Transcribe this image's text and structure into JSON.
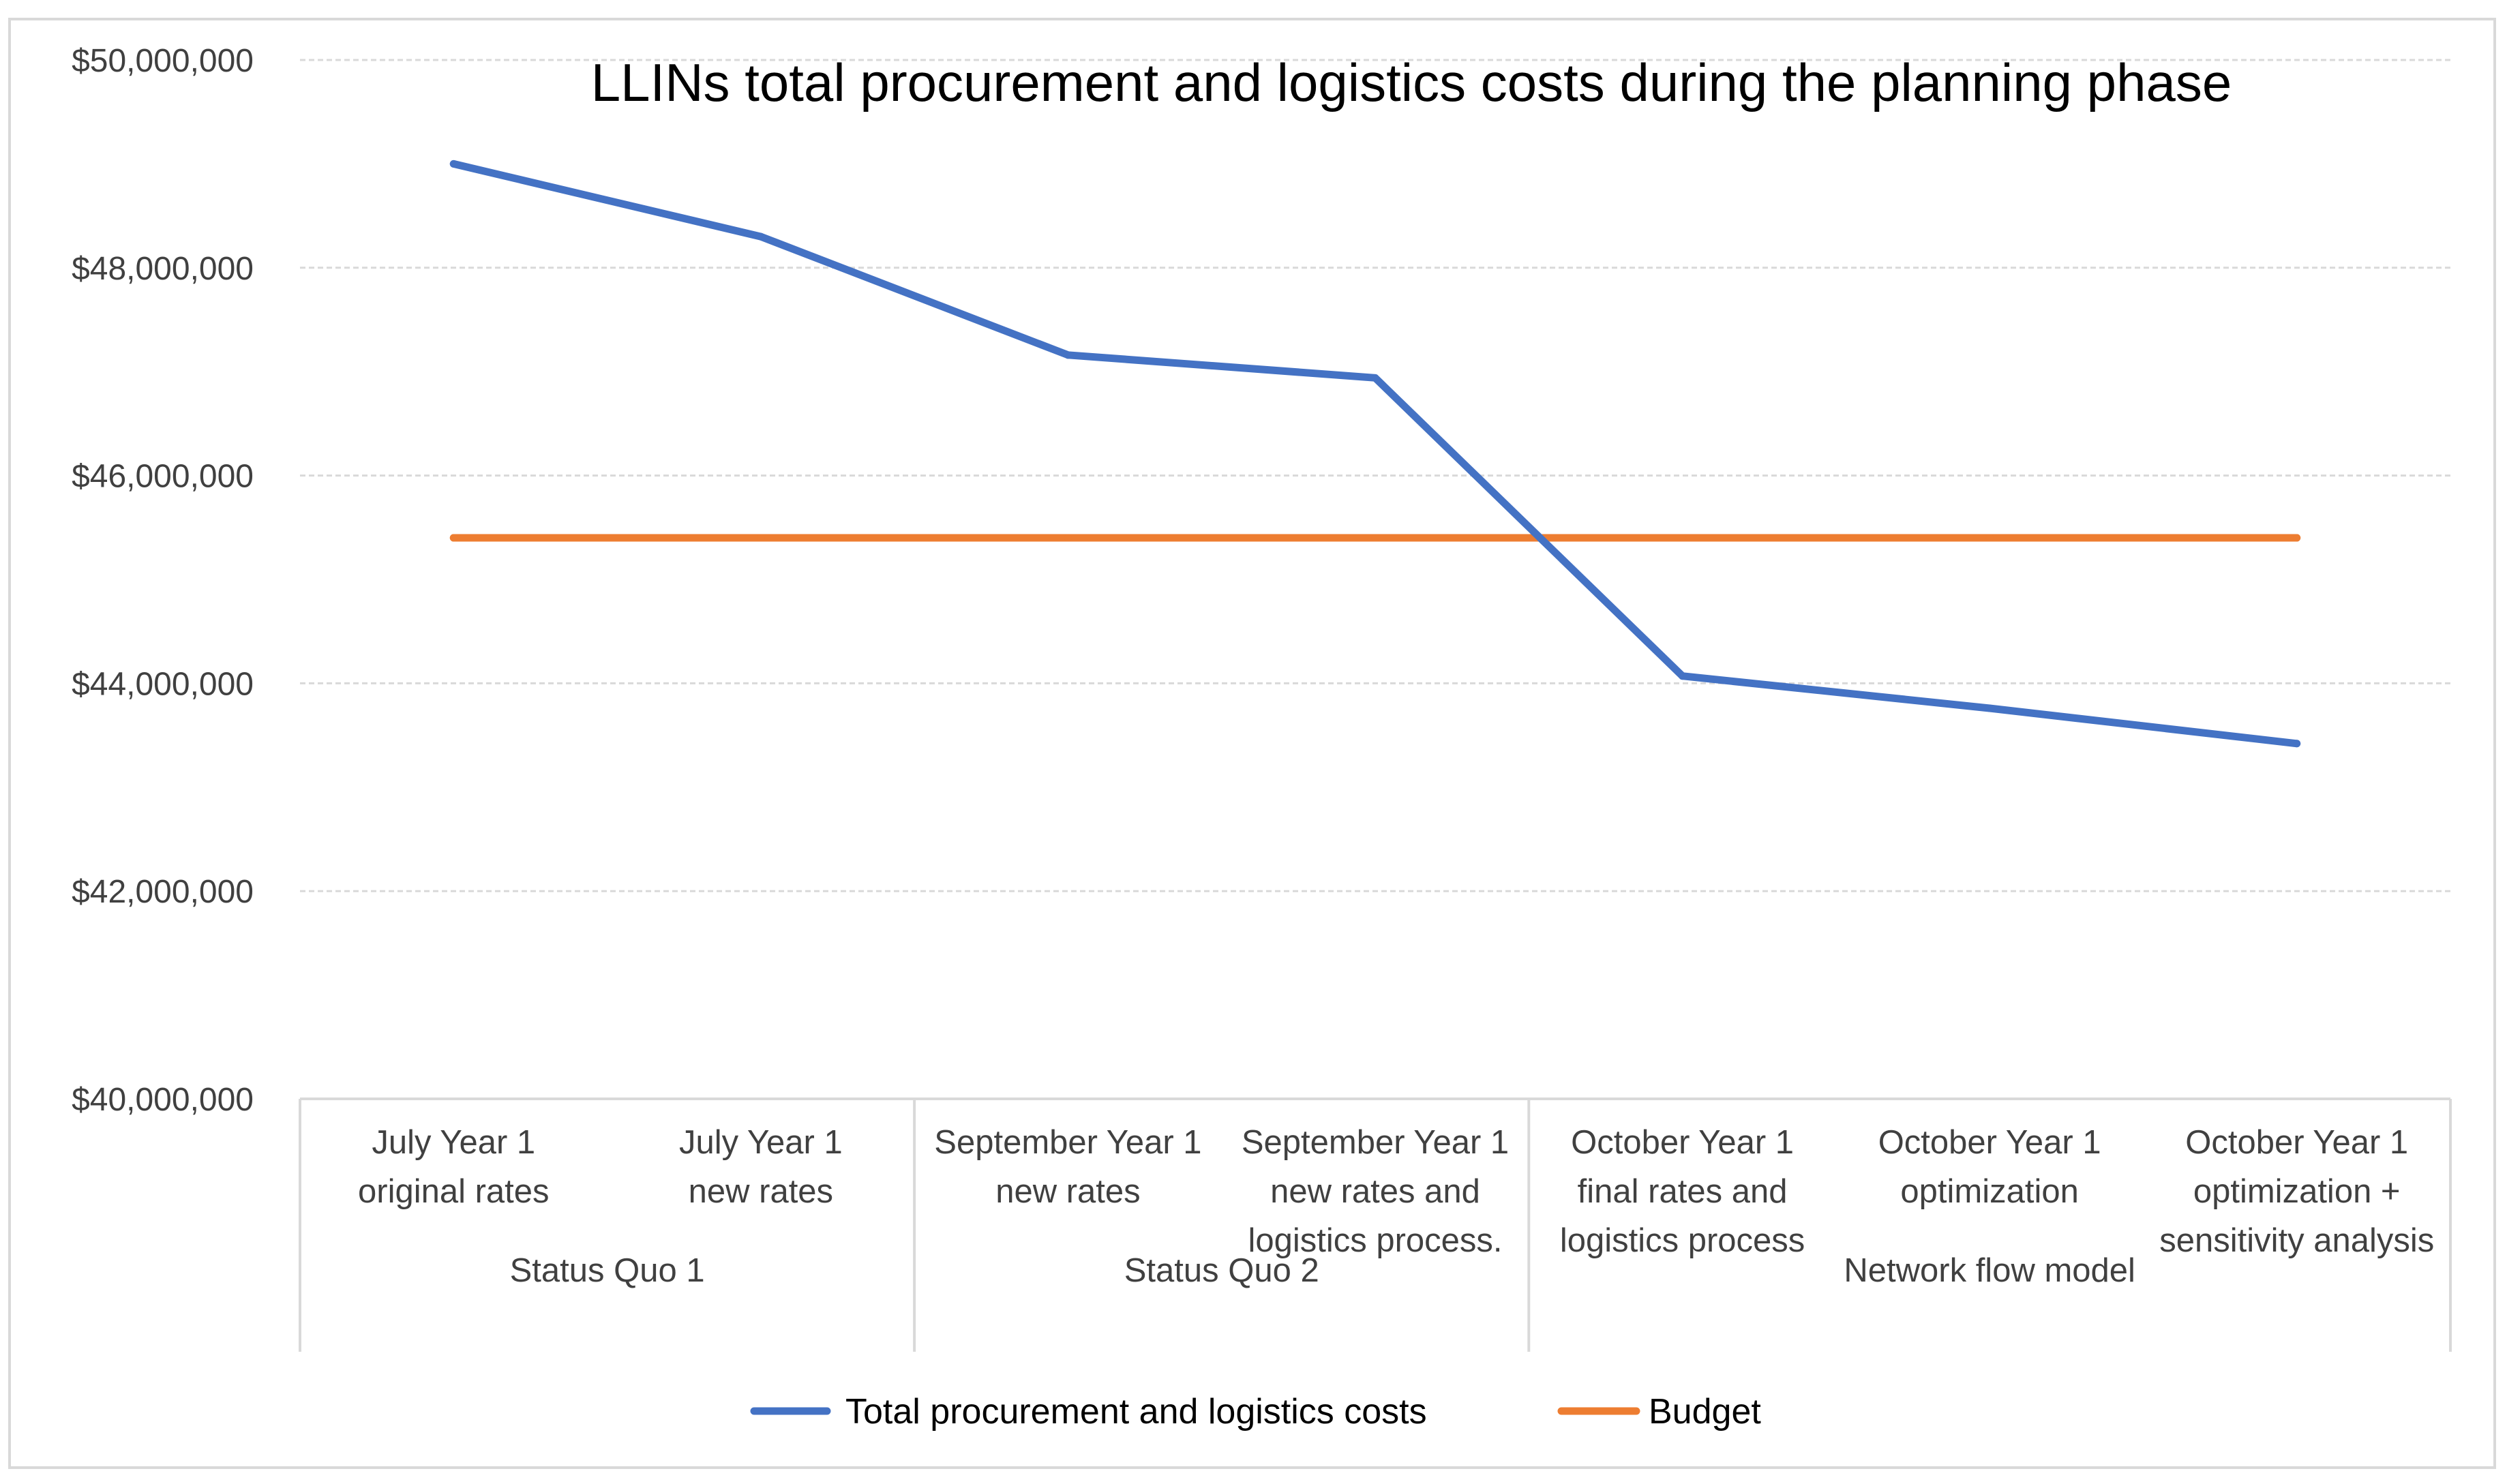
{
  "chart_data": {
    "type": "line",
    "title": "LLINs total procurement and logistics costs during the planning phase",
    "xlabel": "",
    "ylabel": "",
    "ylim": [
      40000000,
      50000000
    ],
    "yticks": [
      40000000,
      42000000,
      44000000,
      46000000,
      48000000,
      50000000
    ],
    "ytick_labels": [
      "$40,000,000",
      "$42,000,000",
      "$44,000,000",
      "$46,000,000",
      "$48,000,000",
      "$50,000,000"
    ],
    "grid": true,
    "categories": [
      {
        "lines": [
          "July Year 1",
          "original rates"
        ]
      },
      {
        "lines": [
          "July Year 1",
          "new rates"
        ]
      },
      {
        "lines": [
          "September Year 1",
          "new rates"
        ]
      },
      {
        "lines": [
          "September Year 1",
          "new rates and",
          "logistics process."
        ]
      },
      {
        "lines": [
          "October Year 1",
          "final rates and",
          "logistics process"
        ]
      },
      {
        "lines": [
          "October Year 1",
          "optimization"
        ]
      },
      {
        "lines": [
          "October Year 1",
          "optimization +",
          "sensitivity analysis"
        ]
      }
    ],
    "groups": [
      {
        "label": "Status Quo 1",
        "start": 0,
        "end": 1
      },
      {
        "label": "Status Quo 2",
        "start": 2,
        "end": 3
      },
      {
        "label": "Network flow model",
        "start": 4,
        "end": 6
      }
    ],
    "series": [
      {
        "name": "Total procurement and logistics costs",
        "color": "#4472C4",
        "values": [
          49000000,
          48300000,
          47160000,
          46940000,
          44070000,
          43760000,
          43420000
        ]
      },
      {
        "name": "Budget",
        "color": "#ED7D31",
        "values": [
          45400000,
          45400000,
          45400000,
          45400000,
          45400000,
          45400000,
          45400000
        ]
      }
    ],
    "legend_position": "bottom-center"
  },
  "colors": {
    "grid": "#D9D9D9",
    "axis": "#D9D9D9",
    "border": "#D9D9D9"
  }
}
